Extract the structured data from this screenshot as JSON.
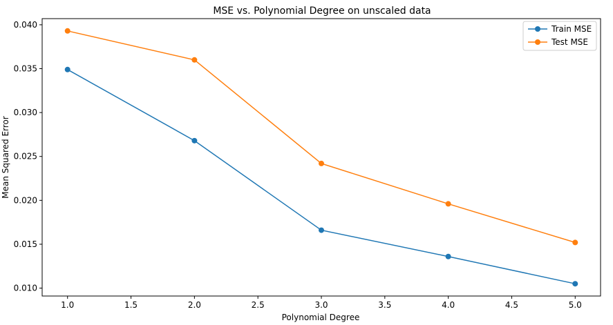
{
  "chart_data": {
    "type": "line",
    "title": "MSE vs. Polynomial Degree on unscaled data",
    "xlabel": "Polynomial Degree",
    "ylabel": "Mean Squared Error",
    "x": [
      1.0,
      2.0,
      3.0,
      4.0,
      5.0
    ],
    "series": [
      {
        "name": "Train MSE",
        "color": "#1f77b4",
        "values": [
          0.0349,
          0.0268,
          0.0166,
          0.0136,
          0.0105
        ]
      },
      {
        "name": "Test MSE",
        "color": "#ff7f0e",
        "values": [
          0.0393,
          0.036,
          0.0242,
          0.0196,
          0.0152
        ]
      }
    ],
    "xticks": [
      "1.0",
      "1.5",
      "2.0",
      "2.5",
      "3.0",
      "3.5",
      "4.0",
      "4.5",
      "5.0"
    ],
    "yticks": [
      "0.010",
      "0.015",
      "0.020",
      "0.025",
      "0.030",
      "0.035",
      "0.040"
    ],
    "xlim": [
      0.8,
      5.2
    ],
    "ylim": [
      0.0091,
      0.0407
    ],
    "grid": false,
    "legend": "top-right"
  }
}
